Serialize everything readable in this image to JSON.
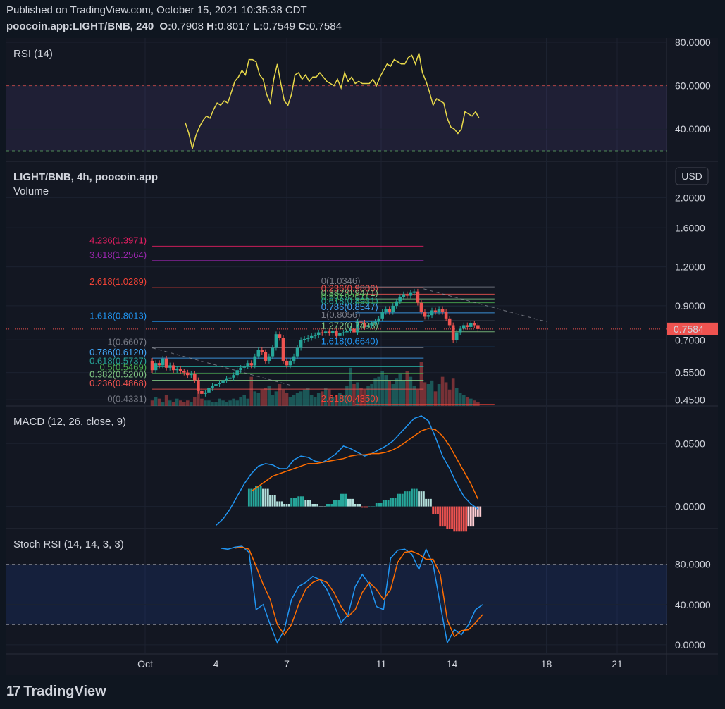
{
  "header": {
    "published": "Published on TradingView.com, October 15, 2021 10:35:38 CDT",
    "symbol": "poocoin.app:LIGHT/BNB, 240",
    "o_label": "O:",
    "o_value": "0.7908",
    "h_label": "H:",
    "h_value": "0.8017",
    "l_label": "L:",
    "l_value": "0.7549",
    "c_label": "C:",
    "c_value": "0.7584"
  },
  "footer": {
    "brand": "TradingView"
  },
  "colors": {
    "background": "#131722",
    "up": "#26a69a",
    "down": "#ef5350",
    "rsi_line": "#e8d94a",
    "macd_line": "#2196f3",
    "signal_line": "#ff6d00",
    "band_rsi": "#7e57c2",
    "band_stoch": "#2962ff"
  },
  "chart_data": [
    {
      "type": "line",
      "pane": "rsi",
      "title": "RSI (14)",
      "ylim": [
        30,
        80
      ],
      "y_ticks": [
        "80.0000",
        "60.0000",
        "40.0000"
      ],
      "levels": [
        60,
        30
      ],
      "x_days": [
        2.7,
        2.85,
        3.0,
        3.15,
        3.3,
        3.45,
        3.6,
        3.75,
        3.9,
        4.05,
        4.2,
        4.35,
        4.5,
        4.65,
        4.8,
        4.95,
        5.1,
        5.25,
        5.4,
        5.55,
        5.7,
        5.85,
        6.0,
        6.15,
        6.3,
        6.45,
        6.6,
        6.75,
        6.9,
        7.05,
        7.2,
        7.35,
        7.5,
        7.65,
        7.8,
        7.95,
        8.1,
        8.25,
        8.4,
        8.55,
        8.7,
        8.85,
        9.0,
        9.15,
        9.3,
        9.45,
        9.6,
        9.75,
        9.9,
        10.05,
        10.2,
        10.35,
        10.5,
        10.65,
        10.8,
        10.95,
        11.1,
        11.25,
        11.4,
        11.55,
        11.7,
        11.85,
        12.0,
        12.15,
        12.3,
        12.45,
        12.6,
        12.75,
        12.9,
        13.05,
        13.2,
        13.35,
        13.5,
        13.65,
        13.8,
        13.95,
        14.1,
        14.25,
        14.4,
        14.55,
        14.7,
        14.85,
        15.0,
        15.15
      ],
      "values": [
        43,
        38,
        31,
        37,
        41,
        44,
        46,
        45,
        49,
        52,
        51,
        53,
        52,
        57,
        62,
        64,
        67,
        65,
        72,
        72,
        71,
        65,
        63,
        56,
        52,
        63,
        70,
        61,
        53,
        51,
        56,
        65,
        66,
        63,
        65,
        62,
        64,
        64,
        66,
        64,
        62,
        61,
        60,
        63,
        59,
        66,
        62,
        64,
        61,
        62,
        61,
        61,
        61,
        63,
        60,
        64,
        67,
        70,
        69,
        72,
        71,
        70,
        70,
        73,
        74,
        70,
        75,
        66,
        62,
        57,
        51,
        54,
        53,
        52,
        45,
        41,
        40,
        38,
        40,
        48,
        47,
        46,
        48,
        45
      ]
    },
    {
      "type": "candlestick",
      "pane": "main",
      "title": "LIGHT/BNB, 4h, poocoin.app",
      "subtitle": "Volume",
      "scale": "log",
      "ylim": [
        0.43,
        2.2
      ],
      "y_ticks": [
        "2.0000",
        "1.6000",
        "1.2000",
        "0.9000",
        "0.7000",
        "0.5500",
        "0.4500"
      ],
      "currency": "USD",
      "last_price": "0.7584",
      "x_days": [
        1.3,
        1.45,
        1.6,
        1.75,
        1.9,
        2.05,
        2.2,
        2.35,
        2.5,
        2.65,
        2.8,
        2.95,
        3.1,
        3.25,
        3.4,
        3.55,
        3.7,
        3.85,
        4.0,
        4.15,
        4.3,
        4.45,
        4.6,
        4.75,
        4.9,
        5.05,
        5.2,
        5.35,
        5.5,
        5.65,
        5.8,
        5.95,
        6.1,
        6.25,
        6.4,
        6.55,
        6.7,
        6.85,
        7.0,
        7.15,
        7.3,
        7.45,
        7.6,
        7.75,
        7.9,
        8.05,
        8.2,
        8.35,
        8.5,
        8.65,
        8.8,
        8.95,
        9.1,
        9.25,
        9.4,
        9.55,
        9.7,
        9.85,
        10.0,
        10.15,
        10.3,
        10.45,
        10.6,
        10.75,
        10.9,
        11.05,
        11.2,
        11.35,
        11.5,
        11.65,
        11.8,
        11.95,
        12.1,
        12.25,
        12.4,
        12.55,
        12.7,
        12.85,
        13.0,
        13.15,
        13.3,
        13.45,
        13.6,
        13.75,
        13.9,
        14.05,
        14.2,
        14.35,
        14.5,
        14.65,
        14.8,
        14.95,
        15.1
      ],
      "open": [
        0.6,
        0.56,
        0.59,
        0.58,
        0.61,
        0.57,
        0.58,
        0.56,
        0.565,
        0.555,
        0.55,
        0.54,
        0.545,
        0.52,
        0.48,
        0.47,
        0.475,
        0.49,
        0.5,
        0.505,
        0.51,
        0.52,
        0.525,
        0.53,
        0.54,
        0.56,
        0.57,
        0.575,
        0.59,
        0.58,
        0.62,
        0.65,
        0.64,
        0.6,
        0.62,
        0.66,
        0.73,
        0.71,
        0.6,
        0.58,
        0.6,
        0.62,
        0.66,
        0.7,
        0.705,
        0.71,
        0.72,
        0.725,
        0.74,
        0.735,
        0.745,
        0.735,
        0.75,
        0.72,
        0.735,
        0.74,
        0.75,
        0.76,
        0.74,
        0.8,
        0.795,
        0.77,
        0.78,
        0.79,
        0.8,
        0.82,
        0.86,
        0.88,
        0.86,
        0.9,
        0.93,
        0.96,
        0.98,
        0.97,
        0.99,
        1.0,
        0.92,
        0.86,
        0.83,
        0.84,
        0.87,
        0.86,
        0.88,
        0.86,
        0.82,
        0.78,
        0.7,
        0.74,
        0.76,
        0.78,
        0.77,
        0.79,
        0.78
      ],
      "close": [
        0.56,
        0.59,
        0.58,
        0.61,
        0.57,
        0.58,
        0.56,
        0.565,
        0.555,
        0.55,
        0.54,
        0.545,
        0.52,
        0.48,
        0.47,
        0.475,
        0.49,
        0.5,
        0.505,
        0.51,
        0.52,
        0.525,
        0.53,
        0.54,
        0.56,
        0.57,
        0.575,
        0.59,
        0.58,
        0.62,
        0.65,
        0.64,
        0.6,
        0.62,
        0.66,
        0.73,
        0.71,
        0.6,
        0.58,
        0.6,
        0.62,
        0.66,
        0.7,
        0.705,
        0.71,
        0.72,
        0.725,
        0.74,
        0.735,
        0.745,
        0.735,
        0.75,
        0.72,
        0.735,
        0.74,
        0.75,
        0.76,
        0.74,
        0.8,
        0.795,
        0.77,
        0.78,
        0.79,
        0.8,
        0.82,
        0.86,
        0.88,
        0.86,
        0.9,
        0.93,
        0.96,
        0.98,
        0.97,
        0.99,
        1.0,
        0.92,
        0.86,
        0.83,
        0.84,
        0.87,
        0.86,
        0.88,
        0.86,
        0.82,
        0.78,
        0.7,
        0.74,
        0.76,
        0.78,
        0.77,
        0.79,
        0.78,
        0.7584
      ],
      "volume": [
        0.3,
        0.5,
        0.4,
        0.2,
        0.6,
        0.3,
        0.2,
        0.4,
        0.3,
        0.2,
        0.3,
        0.2,
        0.5,
        0.9,
        0.4,
        0.3,
        0.3,
        0.2,
        0.2,
        0.4,
        0.3,
        0.2,
        0.3,
        0.4,
        0.3,
        0.5,
        0.6,
        0.4,
        1.6,
        0.8,
        0.7,
        0.9,
        1.0,
        1.1,
        0.6,
        0.8,
        1.2,
        0.9,
        0.7,
        0.5,
        0.6,
        0.7,
        0.8,
        0.9,
        1.0,
        0.6,
        0.5,
        0.7,
        0.8,
        1.0,
        0.9,
        0.5,
        0.6,
        0.7,
        0.6,
        1.1,
        2.1,
        1.2,
        1.3,
        1.0,
        0.9,
        1.1,
        1.2,
        1.5,
        1.6,
        1.9,
        1.7,
        1.4,
        1.2,
        1.5,
        1.8,
        1.4,
        1.9,
        1.6,
        1.1,
        0.9,
        2.4,
        1.3,
        1.2,
        1.4,
        0.8,
        1.2,
        1.6,
        1.3,
        0.9,
        1.5,
        1.0,
        0.7,
        0.6,
        0.5,
        0.4,
        0.3,
        0.2
      ],
      "fib_left": {
        "x_start": 1.3,
        "x_end": 12.8,
        "levels": [
          {
            "label": "4.236(1.3971)",
            "price": 1.3971,
            "color": "#e91e63"
          },
          {
            "label": "3.618(1.2564)",
            "price": 1.2564,
            "color": "#9c27b0"
          },
          {
            "label": "2.618(1.0289)",
            "price": 1.0289,
            "color": "#f44336"
          },
          {
            "label": "1.618(0.8013)",
            "price": 0.8013,
            "color": "#2196f3"
          },
          {
            "label": "1(0.6607)",
            "price": 0.6607,
            "color": "#787b86"
          },
          {
            "label": "0.786(0.6120)",
            "price": 0.612,
            "color": "#42a5f5"
          },
          {
            "label": "0.618(0.5737)",
            "price": 0.5737,
            "color": "#26a69a"
          },
          {
            "label": "0.5(0.5469)",
            "price": 0.5469,
            "color": "#4caf50"
          },
          {
            "label": "0.382(0.5200)",
            "price": 0.52,
            "color": "#81c784"
          },
          {
            "label": "0.236(0.4868)",
            "price": 0.4868,
            "color": "#ef5350"
          },
          {
            "label": "0(0.4331)",
            "price": 0.4331,
            "color": "#787b86"
          }
        ]
      },
      "fib_right": {
        "x_start": 9.9,
        "x_end": 15.8,
        "levels": [
          {
            "label": "0(1.0346)",
            "price": 1.0346,
            "color": "#787b86"
          },
          {
            "label": "0.236(0.9806)",
            "price": 0.9806,
            "color": "#ef5350"
          },
          {
            "label": "0.382(0.9471)",
            "price": 0.9471,
            "color": "#81c784"
          },
          {
            "label": "0.5(0.9201)",
            "price": 0.9201,
            "color": "#4caf50"
          },
          {
            "label": "0.618(0.8931)",
            "price": 0.8931,
            "color": "#26a69a"
          },
          {
            "label": "0.786(0.8547)",
            "price": 0.8547,
            "color": "#42a5f5"
          },
          {
            "label": "1(0.8056)",
            "price": 0.8056,
            "color": "#787b86"
          },
          {
            "label": "1.272(0.7433)",
            "price": 0.7433,
            "color": "#81c784"
          },
          {
            "label": "1.618(0.6640)",
            "price": 0.664,
            "color": "#2196f3"
          },
          {
            "label": "2.618(0.4350)",
            "price": 0.435,
            "color": "#f44336"
          }
        ]
      }
    },
    {
      "type": "line",
      "pane": "macd",
      "title": "MACD (12, 26, close, 9)",
      "ylim": [
        -0.012,
        0.072
      ],
      "y_ticks": [
        "0.0500",
        "0.0000"
      ],
      "x_days": [
        4.0,
        4.3,
        4.6,
        4.9,
        5.2,
        5.5,
        5.8,
        6.1,
        6.4,
        6.7,
        7.0,
        7.3,
        7.6,
        7.9,
        8.2,
        8.5,
        8.8,
        9.1,
        9.4,
        9.7,
        10.0,
        10.3,
        10.6,
        10.9,
        11.2,
        11.5,
        11.8,
        12.1,
        12.4,
        12.7,
        13.0,
        13.3,
        13.6,
        13.9,
        14.2,
        14.5,
        14.8,
        15.1
      ],
      "macd": [
        -0.015,
        -0.01,
        -0.002,
        0.008,
        0.018,
        0.026,
        0.032,
        0.034,
        0.033,
        0.03,
        0.03,
        0.037,
        0.04,
        0.039,
        0.036,
        0.035,
        0.038,
        0.042,
        0.048,
        0.046,
        0.043,
        0.04,
        0.042,
        0.045,
        0.048,
        0.052,
        0.058,
        0.064,
        0.07,
        0.072,
        0.068,
        0.055,
        0.04,
        0.03,
        0.018,
        0.008,
        0.002,
        -0.002
      ],
      "signal": [
        null,
        null,
        null,
        null,
        null,
        0.012,
        0.016,
        0.02,
        0.024,
        0.026,
        0.028,
        0.03,
        0.032,
        0.034,
        0.034,
        0.035,
        0.036,
        0.037,
        0.038,
        0.04,
        0.041,
        0.041,
        0.042,
        0.042,
        0.043,
        0.045,
        0.048,
        0.052,
        0.056,
        0.06,
        0.062,
        0.061,
        0.056,
        0.048,
        0.038,
        0.028,
        0.018,
        0.006
      ],
      "histogram": [
        null,
        null,
        null,
        null,
        null,
        0.014,
        0.016,
        0.014,
        0.009,
        0.004,
        0.002,
        0.007,
        0.008,
        0.005,
        0.002,
        0.0,
        0.002,
        0.005,
        0.01,
        0.006,
        0.002,
        -0.001,
        0.0,
        0.003,
        0.005,
        0.007,
        0.01,
        0.012,
        0.014,
        0.012,
        0.006,
        -0.006,
        -0.016,
        -0.018,
        -0.02,
        -0.02,
        -0.016,
        -0.008
      ]
    },
    {
      "type": "line",
      "pane": "stoch",
      "title": "Stoch RSI (14, 14, 3, 3)",
      "ylim": [
        -5,
        105
      ],
      "y_ticks": [
        "80.0000",
        "40.0000",
        "0.0000"
      ],
      "levels": [
        80,
        20
      ],
      "x_days": [
        4.2,
        4.5,
        4.8,
        5.1,
        5.4,
        5.7,
        6.0,
        6.3,
        6.6,
        6.9,
        7.2,
        7.5,
        7.8,
        8.1,
        8.4,
        8.7,
        9.0,
        9.3,
        9.6,
        9.9,
        10.2,
        10.5,
        10.8,
        11.1,
        11.4,
        11.7,
        12.0,
        12.3,
        12.6,
        12.9,
        13.2,
        13.5,
        13.8,
        14.1,
        14.4,
        14.7,
        15.0,
        15.3
      ],
      "k": [
        96,
        95,
        97,
        98,
        92,
        35,
        40,
        20,
        2,
        15,
        45,
        58,
        62,
        68,
        65,
        55,
        40,
        22,
        30,
        58,
        70,
        60,
        38,
        35,
        86,
        94,
        95,
        90,
        75,
        95,
        80,
        40,
        2,
        15,
        10,
        20,
        35,
        40
      ],
      "d": [
        null,
        null,
        96,
        97,
        95,
        78,
        60,
        45,
        20,
        10,
        20,
        40,
        55,
        62,
        65,
        62,
        52,
        38,
        28,
        35,
        52,
        62,
        55,
        45,
        55,
        82,
        92,
        93,
        90,
        85,
        85,
        70,
        25,
        8,
        14,
        15,
        22,
        30
      ]
    }
  ],
  "x_axis": {
    "ticks": [
      {
        "label": "Oct",
        "day": 1
      },
      {
        "label": "4",
        "day": 4
      },
      {
        "label": "7",
        "day": 7
      },
      {
        "label": "11",
        "day": 11
      },
      {
        "label": "14",
        "day": 14
      },
      {
        "label": "18",
        "day": 18
      },
      {
        "label": "21",
        "day": 21
      }
    ]
  }
}
